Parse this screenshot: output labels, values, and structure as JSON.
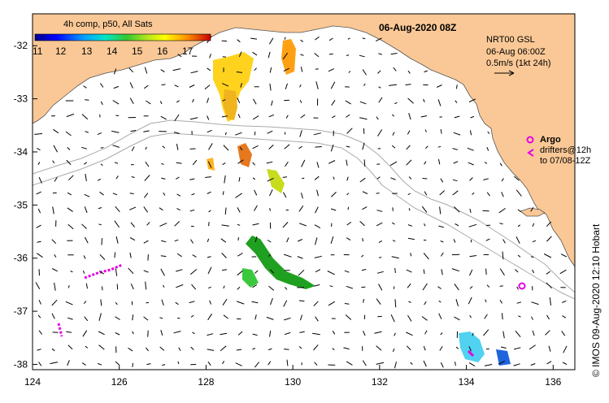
{
  "title": "06-Aug-2020 08Z",
  "colorbar": {
    "title": "4h comp, p50, All Sats",
    "ticks": [
      "11",
      "12",
      "13",
      "14",
      "15",
      "16",
      "17"
    ]
  },
  "product": {
    "line1": "NRT00 GSL",
    "line2": "06-Aug 06:00Z",
    "line3": "0.5m/s (1kt 24h)"
  },
  "argo": {
    "label": "Argo",
    "line2": "drifters@12h",
    "line3": "to 07/08-12Z"
  },
  "credit": "© IMOS 09-Aug-2020 12:10 Hobart",
  "colors": {
    "land": "#fac896",
    "coast": "#555555",
    "contour": "#aaaaaa",
    "argo": "#e600e6",
    "vector": "#000000"
  },
  "map_data": {
    "lon_range": [
      124,
      136.5
    ],
    "lat_range": [
      -38.1,
      -31.4
    ],
    "x_ticks": [
      "124",
      "126",
      "128",
      "130",
      "132",
      "134",
      "136"
    ],
    "y_ticks": [
      "-32",
      "-33",
      "-34",
      "-35",
      "-36",
      "-37",
      "-38"
    ]
  }
}
